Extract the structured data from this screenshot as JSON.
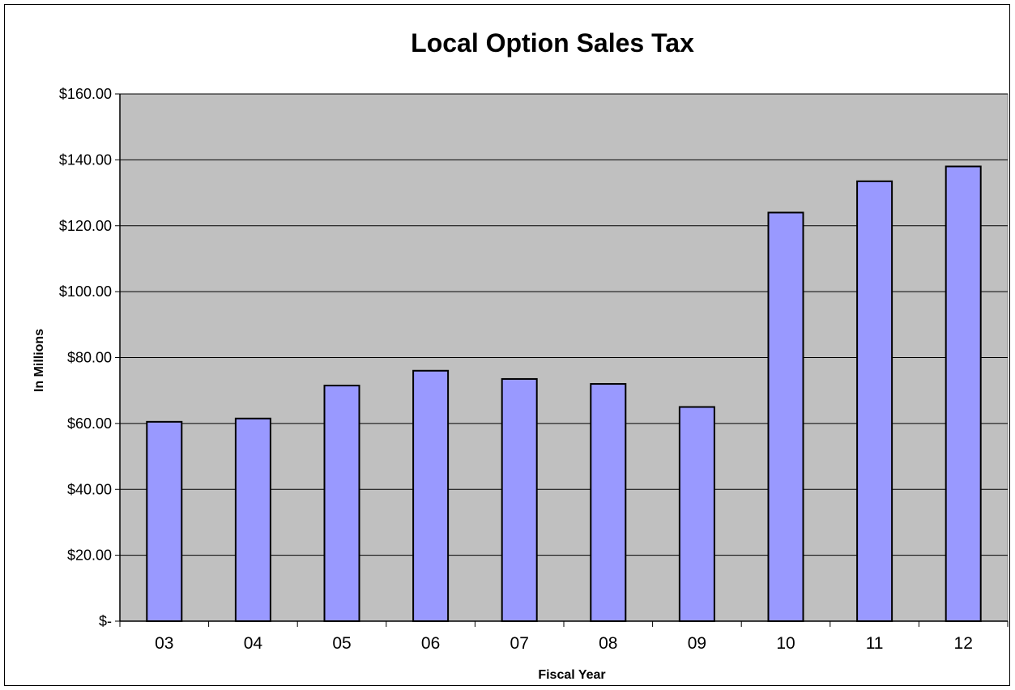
{
  "chart_data": {
    "type": "bar",
    "title": "Local Option Sales Tax",
    "xlabel": "Fiscal Year",
    "ylabel": "In Millions",
    "categories": [
      "03",
      "04",
      "05",
      "06",
      "07",
      "08",
      "09",
      "10",
      "11",
      "12"
    ],
    "values": [
      60.5,
      61.5,
      71.5,
      76.0,
      73.5,
      72.0,
      65.0,
      124.0,
      133.5,
      138.0
    ],
    "ylim": [
      0,
      160
    ],
    "yticks": [
      0,
      20,
      40,
      60,
      80,
      100,
      120,
      140,
      160
    ],
    "ytick_labels": [
      "$-",
      "$20.00",
      "$40.00",
      "$60.00",
      "$80.00",
      "$100.00",
      "$120.00",
      "$140.00",
      "$160.00"
    ],
    "grid": true,
    "legend": "none",
    "colors": {
      "plot_background": "#c0c0c0",
      "bar_fill": "#9999ff",
      "bar_stroke": "#000000",
      "gridline": "#000000"
    }
  }
}
